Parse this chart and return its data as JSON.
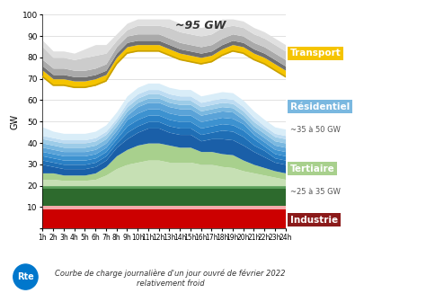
{
  "hours": [
    1,
    2,
    3,
    4,
    5,
    6,
    7,
    8,
    9,
    10,
    11,
    12,
    13,
    14,
    15,
    16,
    17,
    18,
    19,
    20,
    21,
    22,
    23,
    24
  ],
  "title_annotation": "~95 GW",
  "ylabel": "GW",
  "xlabel_ticks": [
    "1h",
    "2h",
    "3h",
    "4h",
    "5h",
    "6h",
    "7h",
    "8h",
    "9h",
    "10h",
    "11h",
    "12h",
    "13h",
    "14h",
    "15h",
    "16h",
    "17h",
    "18h",
    "19h",
    "20h",
    "21h",
    "22h",
    "23h",
    "24h"
  ],
  "caption": "Courbe de charge journalière d'un jour ouvré de février 2022\nrelativement froid",
  "background_color": "#ffffff",
  "plot_bg": "#ffffff",
  "industrie": [
    9,
    9,
    9,
    9,
    9,
    9,
    9,
    9,
    9,
    9,
    9,
    9,
    9,
    9,
    9,
    9,
    9,
    9,
    9,
    9,
    9,
    9,
    9,
    9
  ],
  "industrie_color": "#cc0000",
  "industrie_pink": [
    1.5,
    1.5,
    1.5,
    1.5,
    1.5,
    1.5,
    1.5,
    1.5,
    1.5,
    1.5,
    1.5,
    1.5,
    1.5,
    1.5,
    1.5,
    1.5,
    1.5,
    1.5,
    1.5,
    1.5,
    1.5,
    1.5,
    1.5,
    1.5
  ],
  "industrie_pink_color": "#f4aaaa",
  "dark_green": [
    8,
    8,
    8,
    8,
    8,
    8,
    8,
    8,
    8,
    8,
    8,
    8,
    8,
    8,
    8,
    8,
    8,
    8,
    8,
    8,
    8,
    8,
    8,
    8
  ],
  "dark_green_color": "#2d6a2d",
  "med_green": [
    1.5,
    1.5,
    1.5,
    1.5,
    1.5,
    1.5,
    1.5,
    1.5,
    1.5,
    1.5,
    1.5,
    1.5,
    1.5,
    1.5,
    1.5,
    1.5,
    1.5,
    1.5,
    1.5,
    1.5,
    1.5,
    1.5,
    1.5,
    1.5
  ],
  "med_green_color": "#5a9e5a",
  "tertiaire_bottom": [
    3,
    3,
    2.5,
    2.5,
    2.5,
    3,
    5,
    8,
    10,
    11,
    12,
    12,
    11,
    11,
    11,
    10,
    10,
    9,
    8.5,
    7,
    6,
    5,
    4,
    3
  ],
  "tertiaire_bottom_color": "#c6e0b4",
  "tertiaire_top": [
    3,
    3,
    2.5,
    2.5,
    2.5,
    3,
    4,
    6,
    7,
    8,
    8,
    8,
    8,
    7,
    7,
    6,
    6,
    6,
    6,
    5,
    4,
    3.5,
    3,
    3
  ],
  "tertiaire_top_color": "#a8d08d",
  "residentiel_layers": [
    [
      4,
      3,
      3,
      3,
      3,
      3,
      3,
      4,
      5,
      6,
      7,
      7,
      6,
      6,
      6,
      5,
      6,
      7,
      7,
      7,
      6,
      5,
      4,
      4
    ],
    [
      2,
      2,
      2,
      2,
      2,
      2,
      2,
      2,
      3,
      3,
      3,
      3,
      3,
      3,
      3,
      3,
      3,
      4,
      4,
      4,
      3,
      3,
      2,
      2
    ],
    [
      2,
      2,
      2,
      2,
      2,
      2,
      2,
      2,
      3,
      3,
      3,
      3,
      3,
      3,
      3,
      3,
      3,
      3,
      3,
      3,
      3,
      2,
      2,
      2
    ],
    [
      2,
      2,
      2,
      2,
      2,
      2,
      2,
      2,
      3,
      3,
      3,
      3,
      3,
      3,
      3,
      3,
      3,
      3,
      3,
      3,
      2,
      2,
      2,
      2
    ],
    [
      2,
      2,
      2,
      2,
      2,
      2,
      2,
      2,
      2,
      3,
      3,
      3,
      3,
      3,
      3,
      3,
      3,
      3,
      3,
      2,
      2,
      2,
      2,
      2
    ],
    [
      2,
      2,
      2,
      2,
      2,
      2,
      2,
      2,
      2,
      2,
      2,
      2,
      2,
      2,
      2,
      2,
      2,
      2,
      2,
      2,
      2,
      2,
      2,
      2
    ],
    [
      2,
      2,
      2,
      2,
      2,
      2,
      2,
      2,
      2,
      2,
      2,
      2,
      2,
      2,
      2,
      2,
      2,
      2,
      2,
      2,
      2,
      2,
      2,
      2
    ],
    [
      1.5,
      1.5,
      1.5,
      1.5,
      1.5,
      1.5,
      1.5,
      1.5,
      2,
      2,
      2,
      2,
      2,
      2,
      2,
      2,
      2,
      2,
      2,
      2,
      2,
      1.5,
      1.5,
      1.5
    ],
    [
      4,
      3,
      3,
      3,
      3,
      3,
      3,
      3,
      3,
      3,
      3,
      3,
      3,
      3,
      3,
      3,
      3,
      3,
      3,
      3,
      3,
      3,
      3,
      3
    ]
  ],
  "residentiel_colors": [
    "#1a5fa8",
    "#1f6eb5",
    "#2a80c5",
    "#3d92d0",
    "#5aa3d8",
    "#7ab8e0",
    "#9dcce8",
    "#bddcf2",
    "#d9edf8"
  ],
  "transport_bottom": [
    71,
    67,
    67,
    66,
    66,
    67,
    69,
    77,
    82,
    83,
    83,
    83,
    81,
    79,
    78,
    77,
    78,
    81,
    83,
    82,
    79,
    77,
    74,
    71
  ],
  "transport_top": [
    74,
    70,
    70,
    69,
    69,
    70,
    72,
    80,
    85,
    86,
    86,
    86,
    84,
    82,
    81,
    80,
    81,
    84,
    86,
    85,
    82,
    80,
    77,
    74
  ],
  "transport_color": "#f5c400",
  "transport_line_color": "#c8a000",
  "dark_gray": [
    2,
    2,
    2,
    2,
    2,
    2,
    2,
    2,
    2,
    2,
    2,
    2,
    2,
    2,
    2,
    2,
    2,
    2,
    2,
    2,
    2,
    2,
    2,
    2
  ],
  "dark_gray_color": "#707070",
  "mid_gray": [
    3,
    3,
    3,
    3,
    3,
    3,
    3,
    3,
    3,
    3,
    3,
    3,
    3,
    3,
    3,
    3,
    3,
    3,
    3,
    3,
    3,
    3,
    3,
    3
  ],
  "mid_gray_color": "#aaaaaa",
  "light_gray_extra": [
    6,
    5,
    5,
    5,
    6,
    6,
    5,
    3,
    3,
    4,
    4,
    4,
    5,
    5,
    5,
    5,
    5,
    5,
    4,
    4,
    4,
    4,
    4,
    4
  ],
  "light_gray_extra_color": "#cccccc",
  "outer_gray": [
    3,
    3,
    3,
    3,
    4,
    5,
    4,
    3,
    3,
    3,
    3,
    3,
    4,
    4,
    4,
    4,
    4,
    4,
    3,
    3,
    3,
    3,
    3,
    3
  ],
  "outer_gray_color": "#e0e0e0",
  "ylim": [
    0,
    100
  ],
  "label_transport": "Transport",
  "label_residentiel": "Résidentiel",
  "label_residentiel_sub": "~35 à 50 GW",
  "label_tertiaire": "Tertiaire",
  "label_tertiaire_sub": "~25 à 35 GW",
  "label_industrie": "Industrie"
}
